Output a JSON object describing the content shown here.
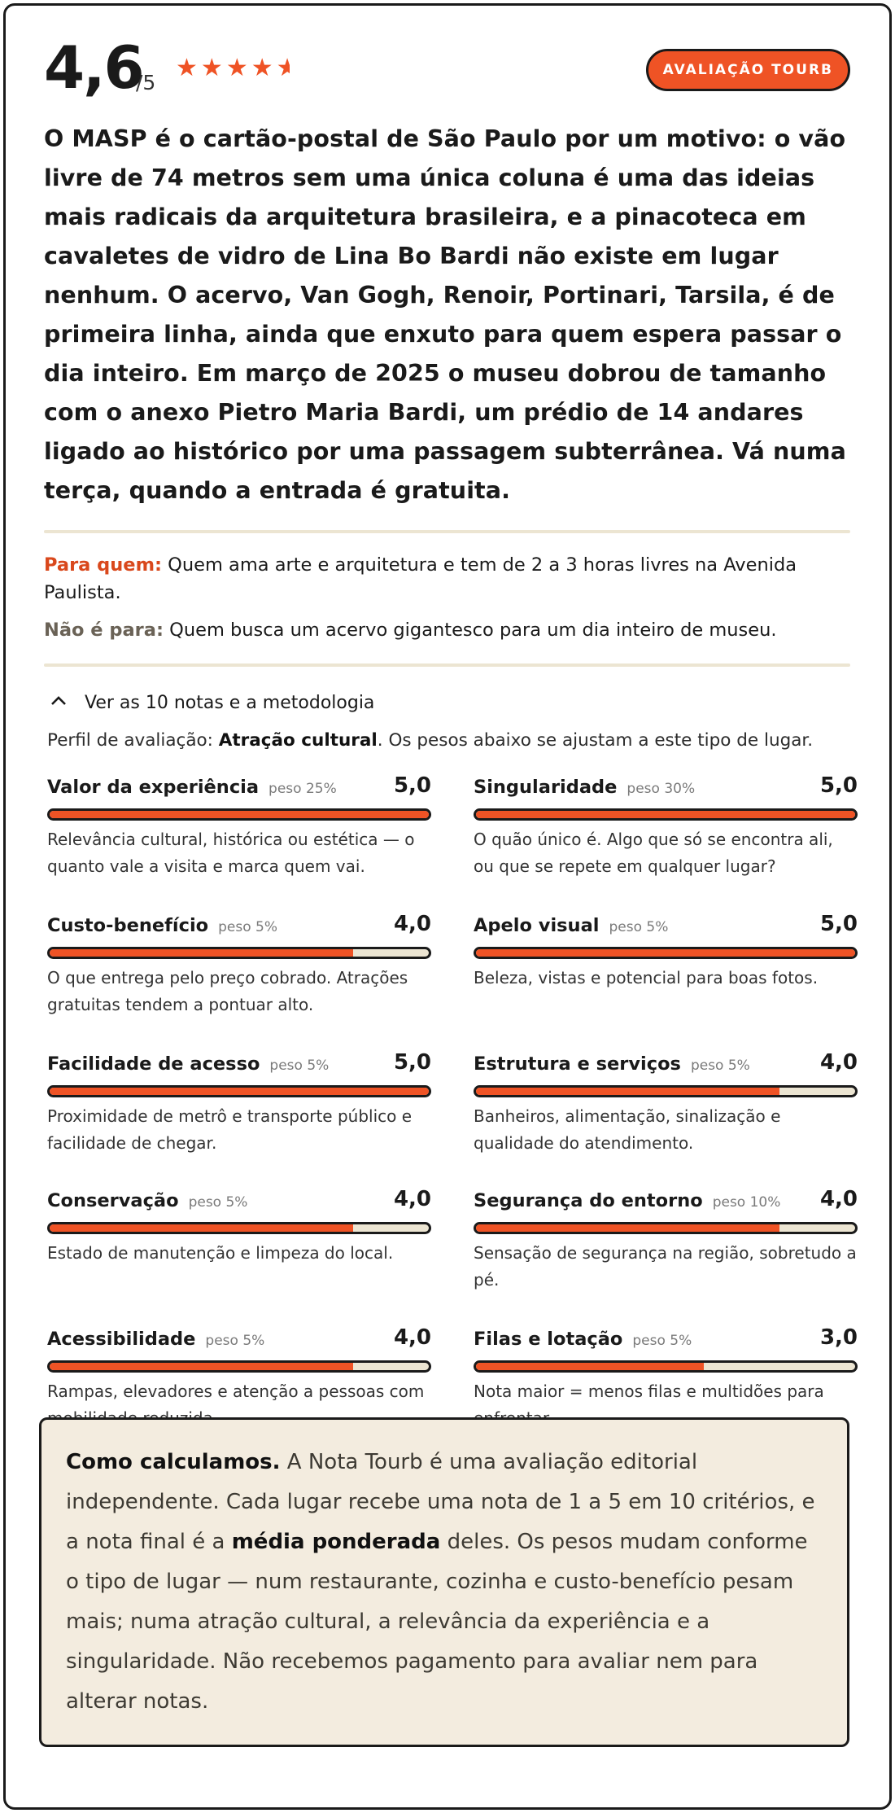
{
  "rating": {
    "score": "4,6",
    "max": "/5",
    "stars": 4.6,
    "badge": "AVALIAÇÃO TOURB"
  },
  "review_text": "O MASP é o cartão-postal de São Paulo por um motivo: o vão livre de 74 metros sem uma única coluna é uma das ideias mais radicais da arquitetura brasileira, e a pinacoteca em cavaletes de vidro de Lina Bo Bardi não existe em lugar nenhum. O acervo, Van Gogh, Renoir, Portinari, Tarsila, é de primeira linha, ainda que enxuto para quem espera passar o dia inteiro. Em março de 2025 o museu dobrou de tamanho com o anexo Pietro Maria Bardi, um prédio de 14 andares ligado ao histórico por uma passagem subterrânea. Vá numa terça, quando a entrada é gratuita.",
  "audience": {
    "for_label": "Para quem:",
    "for_text": "Quem ama arte e arquitetura e tem de 2 a 3 horas livres na Avenida Paulista.",
    "notfor_label": "Não é para:",
    "notfor_text": "Quem busca um acervo gigantesco para um dia inteiro de museu."
  },
  "toggle_label": "Ver as 10 notas e a metodologia",
  "profile": {
    "prefix": "Perfil de avaliação: ",
    "type": "Atração cultural",
    "suffix": ". Os pesos abaixo se ajustam a este tipo de lugar."
  },
  "criteria": [
    {
      "name": "Valor da experiência",
      "weight": "peso 25%",
      "value": "5,0",
      "fill": 1.0,
      "desc": "Relevância cultural, histórica ou estética — o quanto vale a visita e marca quem vai."
    },
    {
      "name": "Singularidade",
      "weight": "peso 30%",
      "value": "5,0",
      "fill": 1.0,
      "desc": "O quão único é. Algo que só se encontra ali, ou que se repete em qualquer lugar?"
    },
    {
      "name": "Custo-benefício",
      "weight": "peso 5%",
      "value": "4,0",
      "fill": 0.8,
      "desc": "O que entrega pelo preço cobrado. Atrações gratuitas tendem a pontuar alto."
    },
    {
      "name": "Apelo visual",
      "weight": "peso 5%",
      "value": "5,0",
      "fill": 1.0,
      "desc": "Beleza, vistas e potencial para boas fotos."
    },
    {
      "name": "Facilidade de acesso",
      "weight": "peso 5%",
      "value": "5,0",
      "fill": 1.0,
      "desc": "Proximidade de metrô e transporte público e facilidade de chegar."
    },
    {
      "name": "Estrutura e serviços",
      "weight": "peso 5%",
      "value": "4,0",
      "fill": 0.8,
      "desc": "Banheiros, alimentação, sinalização e qualidade do atendimento."
    },
    {
      "name": "Conservação",
      "weight": "peso 5%",
      "value": "4,0",
      "fill": 0.8,
      "desc": "Estado de manutenção e limpeza do local."
    },
    {
      "name": "Segurança do entorno",
      "weight": "peso 10%",
      "value": "4,0",
      "fill": 0.8,
      "desc": "Sensação de segurança na região, sobretudo a pé."
    },
    {
      "name": "Acessibilidade",
      "weight": "peso 5%",
      "value": "4,0",
      "fill": 0.8,
      "desc": "Rampas, elevadores e atenção a pessoas com mobilidade reduzida."
    },
    {
      "name": "Filas e lotação",
      "weight": "peso 5%",
      "value": "3,0",
      "fill": 0.6,
      "desc": "Nota maior = menos filas e multidões para enfrentar."
    }
  ],
  "methodology": {
    "title": "Como calculamos.",
    "text1": " A Nota Tourb é uma avaliação editorial independente. Cada lugar recebe uma nota de 1 a 5 em 10 critérios, e a nota final é a ",
    "emph": "média ponderada",
    "text2": " deles. Os pesos mudam conforme o tipo de lugar — num restaurante, cozinha e custo-benefício pesam mais; numa atração cultural, a relevância da experiência e a singularidade. Não recebemos pagamento para avaliar nem para alterar notas."
  },
  "colors": {
    "accent": "#ef5325",
    "track": "#ece5d2",
    "panel": "#f3ecdf",
    "ink": "#1a1a1a"
  }
}
